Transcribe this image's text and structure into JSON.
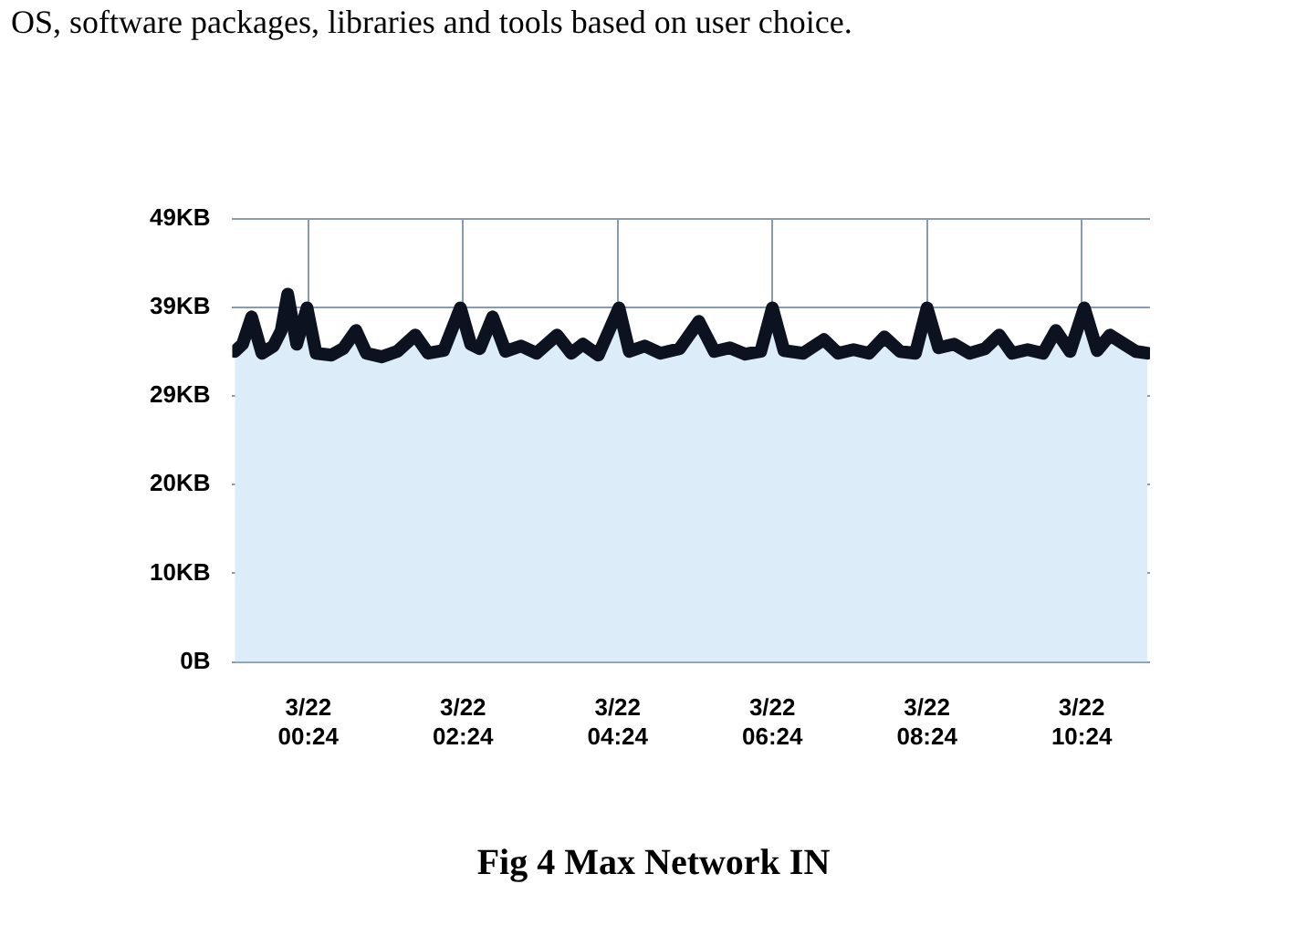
{
  "chart_data": {
    "type": "area",
    "title": "Fig 4 Max Network IN",
    "annotations": [
      "OS, software packages, libraries and tools based on user choice."
    ],
    "x": [
      "--03-21T23:27",
      "--03-21T23:33",
      "--03-21T23:40",
      "--03-21T23:48",
      "--03-21T23:57",
      "--03-22T00:03",
      "--03-22T00:08",
      "--03-22T00:15",
      "--03-22T00:23",
      "--03-22T00:30",
      "--03-22T00:42",
      "--03-22T00:51",
      "--03-22T01:01",
      "--03-22T01:09",
      "--03-22T01:21",
      "--03-22T01:33",
      "--03-22T01:47",
      "--03-22T01:57",
      "--03-22T02:09",
      "--03-22T02:22",
      "--03-22T02:30",
      "--03-22T02:37",
      "--03-22T02:47",
      "--03-22T02:57",
      "--03-22T03:09",
      "--03-22T03:21",
      "--03-22T03:37",
      "--03-22T03:48",
      "--03-22T03:57",
      "--03-22T04:09",
      "--03-22T04:25",
      "--03-22T04:33",
      "--03-22T04:45",
      "--03-22T04:57",
      "--03-22T05:12",
      "--03-22T05:27",
      "--03-22T05:39",
      "--03-22T05:51",
      "--03-22T06:03",
      "--03-22T06:15",
      "--03-22T06:24",
      "--03-22T06:33",
      "--03-22T06:48",
      "--03-22T07:04",
      "--03-22T07:15",
      "--03-22T07:27",
      "--03-22T07:39",
      "--03-22T07:51",
      "--03-22T08:03",
      "--03-22T08:15",
      "--03-22T08:24",
      "--03-22T08:33",
      "--03-22T08:45",
      "--03-22T08:57",
      "--03-22T09:09",
      "--03-22T09:20",
      "--03-22T09:30",
      "--03-22T09:42",
      "--03-22T09:54",
      "--03-22T10:04",
      "--03-22T10:15",
      "--03-22T10:26",
      "--03-22T10:36",
      "--03-22T10:46",
      "--03-22T10:57",
      "--03-22T11:06",
      "--03-22T11:15"
    ],
    "series": [
      {
        "color": "#0d1220",
        "values": [
          34.2,
          35.0,
          38.0,
          34.0,
          34.8,
          36.5,
          40.5,
          35.0,
          39.0,
          34.0,
          33.8,
          34.5,
          36.5,
          34.0,
          33.6,
          34.2,
          36.0,
          34.0,
          34.3,
          39.0,
          35.0,
          34.5,
          38.0,
          34.2,
          34.8,
          34.0,
          36.0,
          34.0,
          35.0,
          33.8,
          39.0,
          34.2,
          34.8,
          34.0,
          34.5,
          37.5,
          34.2,
          34.6,
          33.9,
          34.2,
          39.0,
          34.3,
          34.0,
          35.5,
          34.0,
          34.4,
          34.0,
          35.8,
          34.2,
          34.0,
          39.0,
          34.6,
          35.0,
          34.0,
          34.5,
          36.0,
          34.0,
          34.4,
          34.0,
          36.5,
          34.2,
          39.0,
          34.3,
          36.0,
          35.0,
          34.2,
          34.0
        ]
      }
    ],
    "xlim": [
      "--03-21T23:25",
      "--03-22T11:17"
    ],
    "xticks": [
      {
        "value": "--03-22T00:24",
        "label": "3/22\n00:24"
      },
      {
        "value": "--03-22T02:24",
        "label": "3/22\n02:24"
      },
      {
        "value": "--03-22T04:24",
        "label": "3/22\n04:24"
      },
      {
        "value": "--03-22T06:24",
        "label": "3/22\n06:24"
      },
      {
        "value": "--03-22T08:24",
        "label": "3/22\n08:24"
      },
      {
        "value": "--03-22T10:24",
        "label": "3/22\n10:24"
      }
    ],
    "ylim": [
      0,
      48.83
    ],
    "yticks": [
      {
        "value": 0,
        "label": "0B"
      },
      {
        "value": 9.77,
        "label": "10KB"
      },
      {
        "value": 19.53,
        "label": "20KB"
      },
      {
        "value": 29.3,
        "label": "29KB"
      },
      {
        "value": 39.06,
        "label": "39KB"
      },
      {
        "value": 48.83,
        "label": "49KB"
      }
    ],
    "grid": true,
    "marker": "none",
    "line_style": "solid"
  }
}
